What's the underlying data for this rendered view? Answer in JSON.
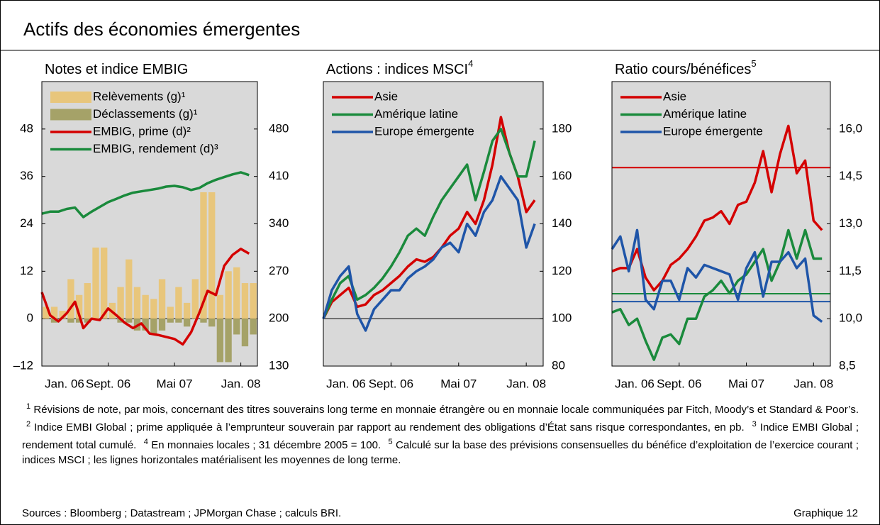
{
  "header": {
    "title": "Actifs des économies émergentes"
  },
  "chart_data": [
    {
      "type": "combo",
      "title": "Notes et indice EMBIG",
      "x": [
        "2006-01",
        "2006-02",
        "2006-03",
        "2006-04",
        "2006-05",
        "2006-06",
        "2006-07",
        "2006-08",
        "2006-09",
        "2006-10",
        "2006-11",
        "2006-12",
        "2007-01",
        "2007-02",
        "2007-03",
        "2007-04",
        "2007-05",
        "2007-06",
        "2007-07",
        "2007-08",
        "2007-09",
        "2007-10",
        "2007-11",
        "2007-12",
        "2008-01",
        "2008-02"
      ],
      "xlim": [
        "2006-01",
        "2008-03"
      ],
      "xticks": [
        {
          "value": "2006-01",
          "label": "Jan. 06"
        },
        {
          "value": "2006-09",
          "label": "Sept. 06"
        },
        {
          "value": "2007-05",
          "label": "Mai 07"
        },
        {
          "value": "2008-01",
          "label": "Jan. 08"
        }
      ],
      "ylim": [
        -12,
        60
      ],
      "yticks": [
        {
          "value": -12,
          "label": "–12"
        },
        0,
        12,
        24,
        36,
        48
      ],
      "y2lim": [
        130,
        550
      ],
      "y2ticks": [
        130,
        200,
        270,
        340,
        410,
        480
      ],
      "reference_line": 0,
      "series": [
        {
          "name": "Relèvements (g)¹",
          "type": "bar",
          "color": "#e8c67c",
          "values": [
            3,
            3,
            2,
            10,
            6,
            9,
            18,
            18,
            4,
            8,
            15,
            8,
            6,
            5,
            10,
            3,
            8,
            4,
            10,
            32,
            32,
            6,
            12,
            13,
            9,
            9
          ]
        },
        {
          "name": "Déclassements (g)¹",
          "type": "bar",
          "color": "#a5a268",
          "values": [
            0,
            -1,
            0,
            -1,
            -1,
            -1,
            0,
            0,
            0,
            -1,
            -1,
            -3,
            -3,
            -4,
            -3,
            -1,
            -1,
            -2,
            0,
            -1,
            -2,
            -11,
            -11,
            -4,
            -7,
            -4
          ]
        },
        {
          "name": "EMBIG, prime (d)²",
          "type": "line",
          "axis": "y2",
          "color": "#d40000",
          "values": [
            239,
            205,
            196,
            208,
            225,
            186,
            200,
            198,
            215,
            205,
            194,
            186,
            193,
            178,
            176,
            173,
            170,
            162,
            180,
            209,
            241,
            235,
            278,
            294,
            303,
            296
          ]
        },
        {
          "name": "EMBIG, rendement (d)³",
          "type": "line",
          "axis": "y2",
          "color": "#1a8a3c",
          "values": [
            355,
            358,
            358,
            362,
            364,
            350,
            358,
            365,
            372,
            377,
            382,
            386,
            388,
            390,
            392,
            395,
            396,
            394,
            390,
            393,
            400,
            405,
            409,
            413,
            416,
            412
          ]
        }
      ]
    },
    {
      "type": "line",
      "title": "Actions : indices MSCI",
      "title_note": "4",
      "x": [
        "2006-01",
        "2006-02",
        "2006-03",
        "2006-04",
        "2006-05",
        "2006-06",
        "2006-07",
        "2006-08",
        "2006-09",
        "2006-10",
        "2006-11",
        "2006-12",
        "2007-01",
        "2007-02",
        "2007-03",
        "2007-04",
        "2007-05",
        "2007-06",
        "2007-07",
        "2007-08",
        "2007-09",
        "2007-10",
        "2007-11",
        "2007-12",
        "2008-01",
        "2008-02"
      ],
      "xlim": [
        "2006-01",
        "2008-03"
      ],
      "xticks": [
        {
          "value": "2006-01",
          "label": "Jan. 06"
        },
        {
          "value": "2006-09",
          "label": "Sept. 06"
        },
        {
          "value": "2007-05",
          "label": "Mai 07"
        },
        {
          "value": "2008-01",
          "label": "Jan. 08"
        }
      ],
      "ylim": [
        80,
        200
      ],
      "yticks": [
        80,
        100,
        120,
        140,
        160,
        180
      ],
      "yaxis_position": "right",
      "reference_line": 100,
      "series": [
        {
          "name": "Asie",
          "color": "#d40000",
          "values": [
            100,
            107,
            110,
            113,
            105,
            106,
            110,
            112,
            115,
            118,
            122,
            125,
            124,
            126,
            130,
            135,
            138,
            145,
            140,
            150,
            165,
            185,
            170,
            160,
            145,
            150
          ]
        },
        {
          "name": "Amérique latine",
          "color": "#1a8a3c",
          "values": [
            100,
            108,
            115,
            118,
            108,
            110,
            113,
            117,
            122,
            128,
            135,
            138,
            135,
            143,
            150,
            155,
            160,
            165,
            150,
            162,
            175,
            180,
            170,
            160,
            160,
            175
          ]
        },
        {
          "name": "Europe émergente",
          "color": "#1f55a8",
          "values": [
            100,
            112,
            118,
            122,
            102,
            95,
            104,
            108,
            112,
            112,
            117,
            120,
            122,
            125,
            130,
            132,
            128,
            140,
            135,
            145,
            150,
            160,
            155,
            150,
            130,
            140
          ]
        }
      ]
    },
    {
      "type": "line",
      "title": "Ratio cours/bénéfices",
      "title_note": "5",
      "x": [
        "2006-01",
        "2006-02",
        "2006-03",
        "2006-04",
        "2006-05",
        "2006-06",
        "2006-07",
        "2006-08",
        "2006-09",
        "2006-10",
        "2006-11",
        "2006-12",
        "2007-01",
        "2007-02",
        "2007-03",
        "2007-04",
        "2007-05",
        "2007-06",
        "2007-07",
        "2007-08",
        "2007-09",
        "2007-10",
        "2007-11",
        "2007-12",
        "2008-01",
        "2008-02"
      ],
      "xlim": [
        "2006-01",
        "2008-03"
      ],
      "xticks": [
        {
          "value": "2006-01",
          "label": "Jan. 06"
        },
        {
          "value": "2006-09",
          "label": "Sept. 06"
        },
        {
          "value": "2007-05",
          "label": "Mai 07"
        },
        {
          "value": "2008-01",
          "label": "Jan. 08"
        }
      ],
      "ylim": [
        8.5,
        17.5
      ],
      "yticks": [
        {
          "value": 8.5,
          "label": "8,5"
        },
        {
          "value": 10,
          "label": "10,0"
        },
        {
          "value": 11.5,
          "label": "11,5"
        },
        {
          "value": 13,
          "label": "13,0"
        },
        {
          "value": 14.5,
          "label": "14,5"
        },
        {
          "value": 16,
          "label": "16,0"
        }
      ],
      "yaxis_position": "right",
      "series": [
        {
          "name": "Asie",
          "color": "#d40000",
          "mean": 14.78,
          "values": [
            11.5,
            11.6,
            11.6,
            12.2,
            11.3,
            10.9,
            11.2,
            11.7,
            11.9,
            12.2,
            12.6,
            13.1,
            13.2,
            13.4,
            13.0,
            13.6,
            13.7,
            14.3,
            15.3,
            14.0,
            15.2,
            16.1,
            14.6,
            15.0,
            13.1,
            12.8
          ]
        },
        {
          "name": "Amérique latine",
          "color": "#1a8a3c",
          "mean": 10.79,
          "values": [
            10.2,
            10.3,
            9.8,
            10.0,
            9.3,
            8.7,
            9.4,
            9.5,
            9.2,
            10.0,
            10.0,
            10.7,
            10.9,
            11.2,
            10.8,
            11.2,
            11.4,
            11.8,
            12.2,
            11.2,
            11.8,
            12.8,
            11.9,
            12.8,
            11.9,
            11.9
          ]
        },
        {
          "name": "Europe émergente",
          "color": "#1f55a8",
          "mean": 10.54,
          "values": [
            12.2,
            12.6,
            11.5,
            12.8,
            10.6,
            10.3,
            11.2,
            11.2,
            10.6,
            11.6,
            11.3,
            11.7,
            11.6,
            11.5,
            11.4,
            10.6,
            11.6,
            12.1,
            10.7,
            11.8,
            11.8,
            12.1,
            11.6,
            11.9,
            10.1,
            9.9
          ]
        }
      ]
    }
  ],
  "footnotes": [
    {
      "number": "1",
      "text": "Révisions de note, par mois, concernant des titres souverains long terme en monnaie étrangère ou en monnaie locale communiquées par Fitch, Moody’s et Standard & Poor’s."
    },
    {
      "number": "2",
      "text": "Indice EMBI Global ; prime appliquée à l’emprunteur souverain par rapport au rendement des obligations d’État sans risque correspondantes, en pb."
    },
    {
      "number": "3",
      "text": "Indice EMBI Global ; rendement total cumulé."
    },
    {
      "number": "4",
      "text": "En monnaies locales ; 31 décembre 2005 = 100."
    },
    {
      "number": "5",
      "text": "Calculé sur la base des prévisions consensuelles du bénéfice d’exploitation de l’exercice courant ; indices MSCI ; les lignes horizontales matérialisent les moyennes de long terme."
    }
  ],
  "footer": {
    "sources": "Sources : Bloomberg ; Datastream ; JPMorgan Chase ; calculs BRI.",
    "label": "Graphique 12"
  }
}
